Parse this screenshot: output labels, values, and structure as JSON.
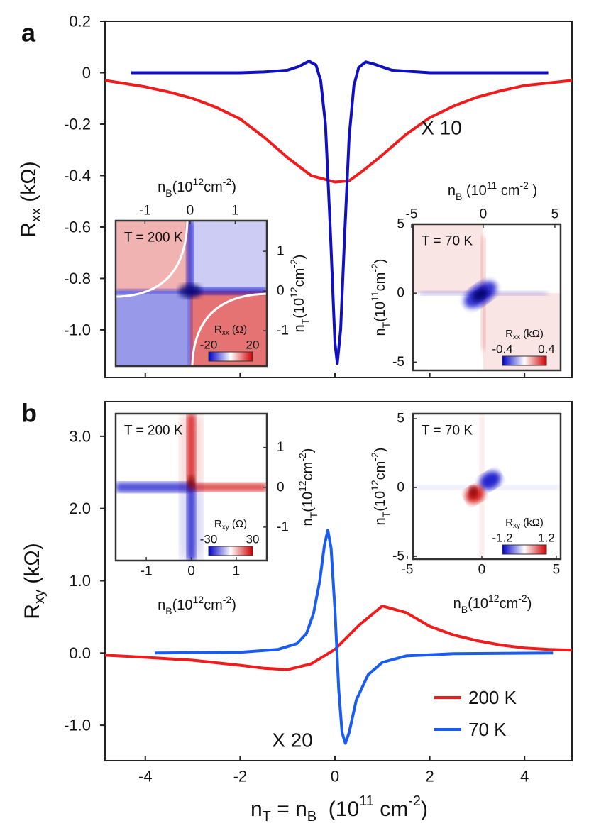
{
  "chart_data": [
    {
      "type": "line",
      "panel_label": "a",
      "ylabel": [
        {
          "text": "R"
        },
        {
          "text": "xx",
          "pos": "sub"
        },
        {
          "text": " (kΩ)"
        }
      ],
      "xlim": [
        -4.85,
        5.0
      ],
      "ylim": [
        -1.185,
        0.2
      ],
      "yticks": [
        0.2,
        0,
        -0.2,
        -0.4,
        -0.6,
        -0.8,
        {
          "value": -1,
          "label": "-1.0"
        }
      ],
      "annotation": {
        "text": "X 10",
        "color": "#ee1c1c"
      },
      "series": [
        {
          "color": "#ee1c1c",
          "x": [
            -4.85,
            -4.5,
            -4,
            -3.5,
            -3,
            -2.5,
            -2,
            -1.5,
            -1,
            -0.5,
            0,
            0.3,
            0.6,
            1,
            1.5,
            2,
            2.5,
            3,
            3.5,
            4,
            4.5,
            5
          ],
          "values": [
            -0.03,
            -0.04,
            -0.055,
            -0.075,
            -0.1,
            -0.135,
            -0.18,
            -0.25,
            -0.33,
            -0.4,
            -0.425,
            -0.42,
            -0.38,
            -0.32,
            -0.24,
            -0.175,
            -0.13,
            -0.095,
            -0.07,
            -0.05,
            -0.04,
            -0.03
          ]
        },
        {
          "color": "#1010c0",
          "x": [
            -4.3,
            -2,
            -1.5,
            -1,
            -0.75,
            -0.55,
            -0.4,
            -0.3,
            -0.2,
            -0.1,
            0,
            0.05,
            0.12,
            0.2,
            0.3,
            0.4,
            0.5,
            0.65,
            0.8,
            1.2,
            2,
            3,
            4.5
          ],
          "values": [
            0,
            0,
            0.003,
            0.01,
            0.025,
            0.045,
            0.03,
            -0.03,
            -0.2,
            -0.6,
            -1.05,
            -1.13,
            -1.0,
            -0.65,
            -0.25,
            -0.05,
            0.02,
            0.042,
            0.035,
            0.01,
            0,
            0,
            0
          ]
        }
      ],
      "insets": [
        {
          "temperature": "T = 200 K",
          "xlabel": [
            {
              "text": "n"
            },
            {
              "text": "B",
              "pos": "sub"
            },
            {
              "text": "(10"
            },
            {
              "text": "12",
              "pos": "sup"
            },
            {
              "text": "cm"
            },
            {
              "text": "-2",
              "pos": "sup"
            },
            {
              "text": ")"
            }
          ],
          "xlim": [
            -1.65,
            1.7
          ],
          "xticks": [
            -1,
            0,
            1
          ],
          "ylabel": [
            {
              "text": "n"
            },
            {
              "text": "T",
              "pos": "sub"
            },
            {
              "text": "(10"
            },
            {
              "text": "12",
              "pos": "sup"
            },
            {
              "text": "cm"
            },
            {
              "text": "-2",
              "pos": "sup"
            },
            {
              "text": ")"
            }
          ],
          "ylim": [
            -1.89,
            1.77
          ],
          "yticks": [
            1,
            0,
            -1
          ],
          "colorbar": {
            "label": [
              {
                "text": "R"
              },
              {
                "text": "xx",
                "pos": "sub"
              },
              {
                "text": " (Ω)"
              }
            ],
            "clim": [
              -20,
              20
            ],
            "cticks": [
              -20,
              20
            ],
            "colors": [
              "#0000c8",
              "#ffffff",
              "#d00000"
            ]
          }
        },
        {
          "temperature": "T = 70 K",
          "xlabel": [
            {
              "text": "n"
            },
            {
              "text": "B",
              "pos": "sub"
            },
            {
              "text": " (10"
            },
            {
              "text": "11",
              "pos": "sup"
            },
            {
              "text": " cm"
            },
            {
              "text": "-2",
              "pos": "sup"
            },
            {
              "text": " )"
            }
          ],
          "xlim": [
            -4.9,
            5.4
          ],
          "xticks": [
            -5,
            0,
            5
          ],
          "ylabel": [
            {
              "text": "n"
            },
            {
              "text": "T",
              "pos": "sub"
            },
            {
              "text": "(10"
            },
            {
              "text": "11",
              "pos": "sup"
            },
            {
              "text": "cm"
            },
            {
              "text": "-2",
              "pos": "sup"
            },
            {
              "text": ")"
            }
          ],
          "ylim": [
            -5.6,
            5.0
          ],
          "yticks": [
            5,
            0,
            -5
          ],
          "colorbar": {
            "label": [
              {
                "text": "R"
              },
              {
                "text": "xx",
                "pos": "sub"
              },
              {
                "text": " (kΩ)"
              }
            ],
            "clim": [
              -0.4,
              0.4
            ],
            "cticks": [
              -0.4,
              0.4
            ],
            "colors": [
              "#0000c8",
              "#ffffff",
              "#d00000"
            ]
          }
        }
      ]
    },
    {
      "type": "line",
      "panel_label": "b",
      "ylabel": [
        {
          "text": "R"
        },
        {
          "text": "xy",
          "pos": "sub"
        },
        {
          "text": " (kΩ)"
        }
      ],
      "xlabel": [
        {
          "text": "n"
        },
        {
          "text": "T",
          "pos": "sub"
        },
        {
          "text": " = n"
        },
        {
          "text": "B",
          "pos": "sub"
        },
        {
          "text": "  (10"
        },
        {
          "text": "11",
          "pos": "sup"
        },
        {
          "text": " cm"
        },
        {
          "text": "-2",
          "pos": "sup"
        },
        {
          "text": ")"
        }
      ],
      "xlim": [
        -4.85,
        5.0
      ],
      "ylim": [
        -1.49,
        3.48
      ],
      "xticks": [
        -4,
        -2,
        0,
        2,
        4
      ],
      "yticks": [
        {
          "value": 3,
          "label": "3.0"
        },
        {
          "value": 2,
          "label": "2.0"
        },
        {
          "value": 1,
          "label": "1.0"
        },
        {
          "value": 0,
          "label": "0.0"
        },
        {
          "value": -1,
          "label": "-1.0"
        }
      ],
      "annotation": {
        "text": "X 20",
        "color": "#ee1c1c"
      },
      "legend": "lower right",
      "series": [
        {
          "name": "200 K",
          "color": "#ee1c1c",
          "x": [
            -4.85,
            -4,
            -3,
            -2,
            -1.5,
            -1,
            -0.5,
            0,
            0.5,
            1,
            1.5,
            2,
            2.5,
            3,
            3.5,
            4,
            4.5,
            5
          ],
          "values": [
            -0.03,
            -0.06,
            -0.1,
            -0.17,
            -0.21,
            -0.23,
            -0.15,
            0.05,
            0.38,
            0.65,
            0.56,
            0.37,
            0.25,
            0.17,
            0.11,
            0.07,
            0.05,
            0.04
          ]
        },
        {
          "name": "70 K",
          "color": "#1a5cf0",
          "x": [
            -3.8,
            -2,
            -1.2,
            -0.8,
            -0.6,
            -0.45,
            -0.32,
            -0.22,
            -0.15,
            -0.08,
            0,
            0.08,
            0.15,
            0.22,
            0.3,
            0.45,
            0.7,
            1,
            1.5,
            2.5,
            4.6
          ],
          "values": [
            0,
            0.01,
            0.05,
            0.13,
            0.27,
            0.55,
            1.0,
            1.5,
            1.7,
            1.45,
            0.6,
            -0.5,
            -1.1,
            -1.25,
            -1.1,
            -0.65,
            -0.3,
            -0.13,
            -0.04,
            -0.01,
            0
          ]
        }
      ],
      "insets": [
        {
          "temperature": "T = 200 K",
          "xlabel": [
            {
              "text": "n"
            },
            {
              "text": "B",
              "pos": "sub"
            },
            {
              "text": "(10"
            },
            {
              "text": "12",
              "pos": "sup"
            },
            {
              "text": "cm"
            },
            {
              "text": "-2",
              "pos": "sup"
            },
            {
              "text": ")"
            }
          ],
          "xlim": [
            -1.68,
            1.68
          ],
          "xticks": [
            -1,
            0,
            1
          ],
          "ylabel": [
            {
              "text": "n"
            },
            {
              "text": "T",
              "pos": "sub"
            },
            {
              "text": "(10"
            },
            {
              "text": "12",
              "pos": "sup"
            },
            {
              "text": "cm"
            },
            {
              "text": "-2",
              "pos": "sup"
            },
            {
              "text": ")"
            }
          ],
          "ylim": [
            -1.84,
            1.85
          ],
          "yticks": [
            1,
            0,
            -1
          ],
          "colorbar": {
            "label": [
              {
                "text": "R"
              },
              {
                "text": "xy",
                "pos": "sub"
              },
              {
                "text": " (Ω)"
              }
            ],
            "clim": [
              -30,
              30
            ],
            "cticks": [
              -30,
              30
            ],
            "colors": [
              "#0000c8",
              "#ffffff",
              "#d00000"
            ]
          }
        },
        {
          "temperature": "T = 70 K",
          "xlabel": [
            {
              "text": "n"
            },
            {
              "text": "B",
              "pos": "sub"
            },
            {
              "text": "(10"
            },
            {
              "text": "12",
              "pos": "sup"
            },
            {
              "text": "cm"
            },
            {
              "text": "-2",
              "pos": "sup"
            },
            {
              "text": ")"
            }
          ],
          "xlim": [
            -4.62,
            5.29
          ],
          "xticks": [
            -5,
            0,
            5
          ],
          "ylabel": [
            {
              "text": "n"
            },
            {
              "text": "T",
              "pos": "sub"
            },
            {
              "text": "(10"
            },
            {
              "text": "12",
              "pos": "sup"
            },
            {
              "text": "cm"
            },
            {
              "text": "-2",
              "pos": "sup"
            },
            {
              "text": ")"
            }
          ],
          "ylim": [
            -5.2,
            5.36
          ],
          "yticks": [
            5,
            0,
            -5
          ],
          "colorbar": {
            "label": [
              {
                "text": "R"
              },
              {
                "text": "xy",
                "pos": "sub"
              },
              {
                "text": " (kΩ)"
              }
            ],
            "clim": [
              -1.2,
              1.2
            ],
            "cticks": [
              -1.2,
              1.2
            ],
            "colors": [
              "#0000c8",
              "#ffffff",
              "#d00000"
            ]
          }
        }
      ]
    }
  ]
}
